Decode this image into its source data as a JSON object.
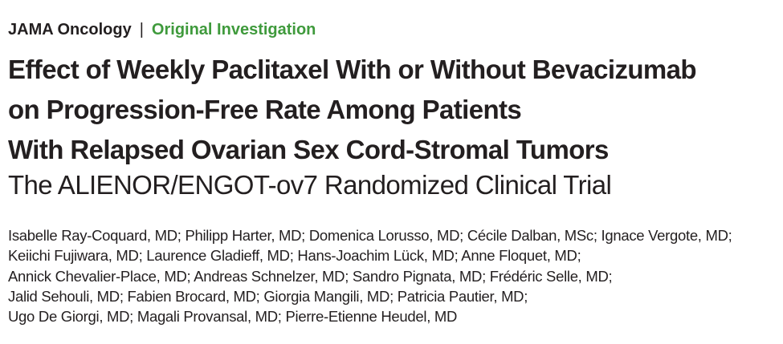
{
  "header": {
    "journal": "JAMA Oncology",
    "separator": "|",
    "section": "Original Investigation"
  },
  "title_lines": [
    "Effect of Weekly Paclitaxel With or Without Bevacizumab",
    "on Progression-Free Rate Among Patients",
    "With Relapsed Ovarian Sex Cord-Stromal Tumors"
  ],
  "subtitle": "The ALIENOR/ENGOT-ov7 Randomized Clinical Trial",
  "author_lines": [
    "Isabelle Ray-Coquard, MD; Philipp Harter, MD; Domenica Lorusso, MD; Cécile Dalban, MSc; Ignace Vergote, MD;",
    "Keiichi Fujiwara, MD; Laurence Gladieff, MD; Hans-Joachim Lück, MD; Anne Floquet, MD;",
    "Annick Chevalier-Place, MD; Andreas Schnelzer, MD; Sandro Pignata, MD; Frédéric Selle, MD;",
    "Jalid Sehouli, MD; Fabien Brocard, MD; Giorgia Mangili, MD; Patricia Pautier, MD;",
    "Ugo De Giorgi, MD; Magali Provansal, MD; Pierre-Etienne Heudel, MD"
  ]
}
